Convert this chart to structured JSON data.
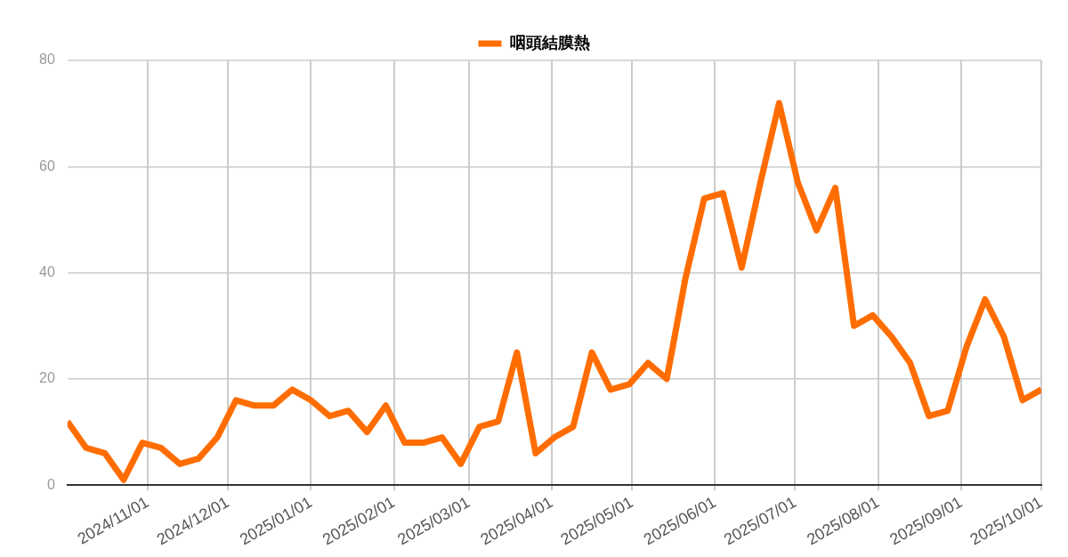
{
  "chart_data": {
    "type": "line",
    "legend": "top",
    "grid": true,
    "marker": "none",
    "line_style": "solid",
    "x": [
      "2024-10-02",
      "2024-10-09",
      "2024-10-16",
      "2024-10-23",
      "2024-10-30",
      "2024-11-06",
      "2024-11-13",
      "2024-11-20",
      "2024-11-27",
      "2024-12-04",
      "2024-12-11",
      "2024-12-18",
      "2024-12-25",
      "2025-01-01",
      "2025-01-08",
      "2025-01-15",
      "2025-01-22",
      "2025-01-29",
      "2025-02-05",
      "2025-02-12",
      "2025-02-19",
      "2025-02-26",
      "2025-03-05",
      "2025-03-12",
      "2025-03-19",
      "2025-03-26",
      "2025-04-02",
      "2025-04-09",
      "2025-04-16",
      "2025-04-23",
      "2025-04-30",
      "2025-05-07",
      "2025-05-14",
      "2025-05-21",
      "2025-05-28",
      "2025-06-04",
      "2025-06-11",
      "2025-06-18",
      "2025-06-25",
      "2025-07-02",
      "2025-07-09",
      "2025-07-16",
      "2025-07-23",
      "2025-07-30",
      "2025-08-06",
      "2025-08-13",
      "2025-08-20",
      "2025-08-27",
      "2025-09-03",
      "2025-09-10",
      "2025-09-17",
      "2025-09-24",
      "2025-10-01"
    ],
    "series": [
      {
        "name": "咽頭結膜熱",
        "color": "#ff6d01",
        "values": [
          12,
          7,
          6,
          1,
          8,
          7,
          4,
          5,
          9,
          16,
          15,
          15,
          18,
          16,
          13,
          14,
          10,
          15,
          8,
          8,
          9,
          4,
          11,
          12,
          25,
          6,
          9,
          11,
          25,
          18,
          19,
          23,
          20,
          39,
          54,
          55,
          41,
          57,
          72,
          57,
          48,
          56,
          30,
          32,
          28,
          23,
          13,
          14,
          26,
          35,
          28,
          16,
          18
        ]
      }
    ],
    "xlim": [
      "2024-10-02",
      "2025-10-01"
    ],
    "xticks": [
      {
        "value": "2024-11-01",
        "label": "2024/11/01"
      },
      {
        "value": "2024-12-01",
        "label": "2024/12/01"
      },
      {
        "value": "2025-01-01",
        "label": "2025/01/01"
      },
      {
        "value": "2025-02-01",
        "label": "2025/02/01"
      },
      {
        "value": "2025-03-01",
        "label": "2025/03/01"
      },
      {
        "value": "2025-04-01",
        "label": "2025/04/01"
      },
      {
        "value": "2025-05-01",
        "label": "2025/05/01"
      },
      {
        "value": "2025-06-01",
        "label": "2025/06/01"
      },
      {
        "value": "2025-07-01",
        "label": "2025/07/01"
      },
      {
        "value": "2025-08-01",
        "label": "2025/08/01"
      },
      {
        "value": "2025-09-01",
        "label": "2025/09/01"
      },
      {
        "value": "2025-10-01",
        "label": "2025/10/01"
      }
    ],
    "ylim": [
      0,
      80
    ],
    "yticks": [
      0,
      20,
      40,
      60,
      80
    ]
  }
}
